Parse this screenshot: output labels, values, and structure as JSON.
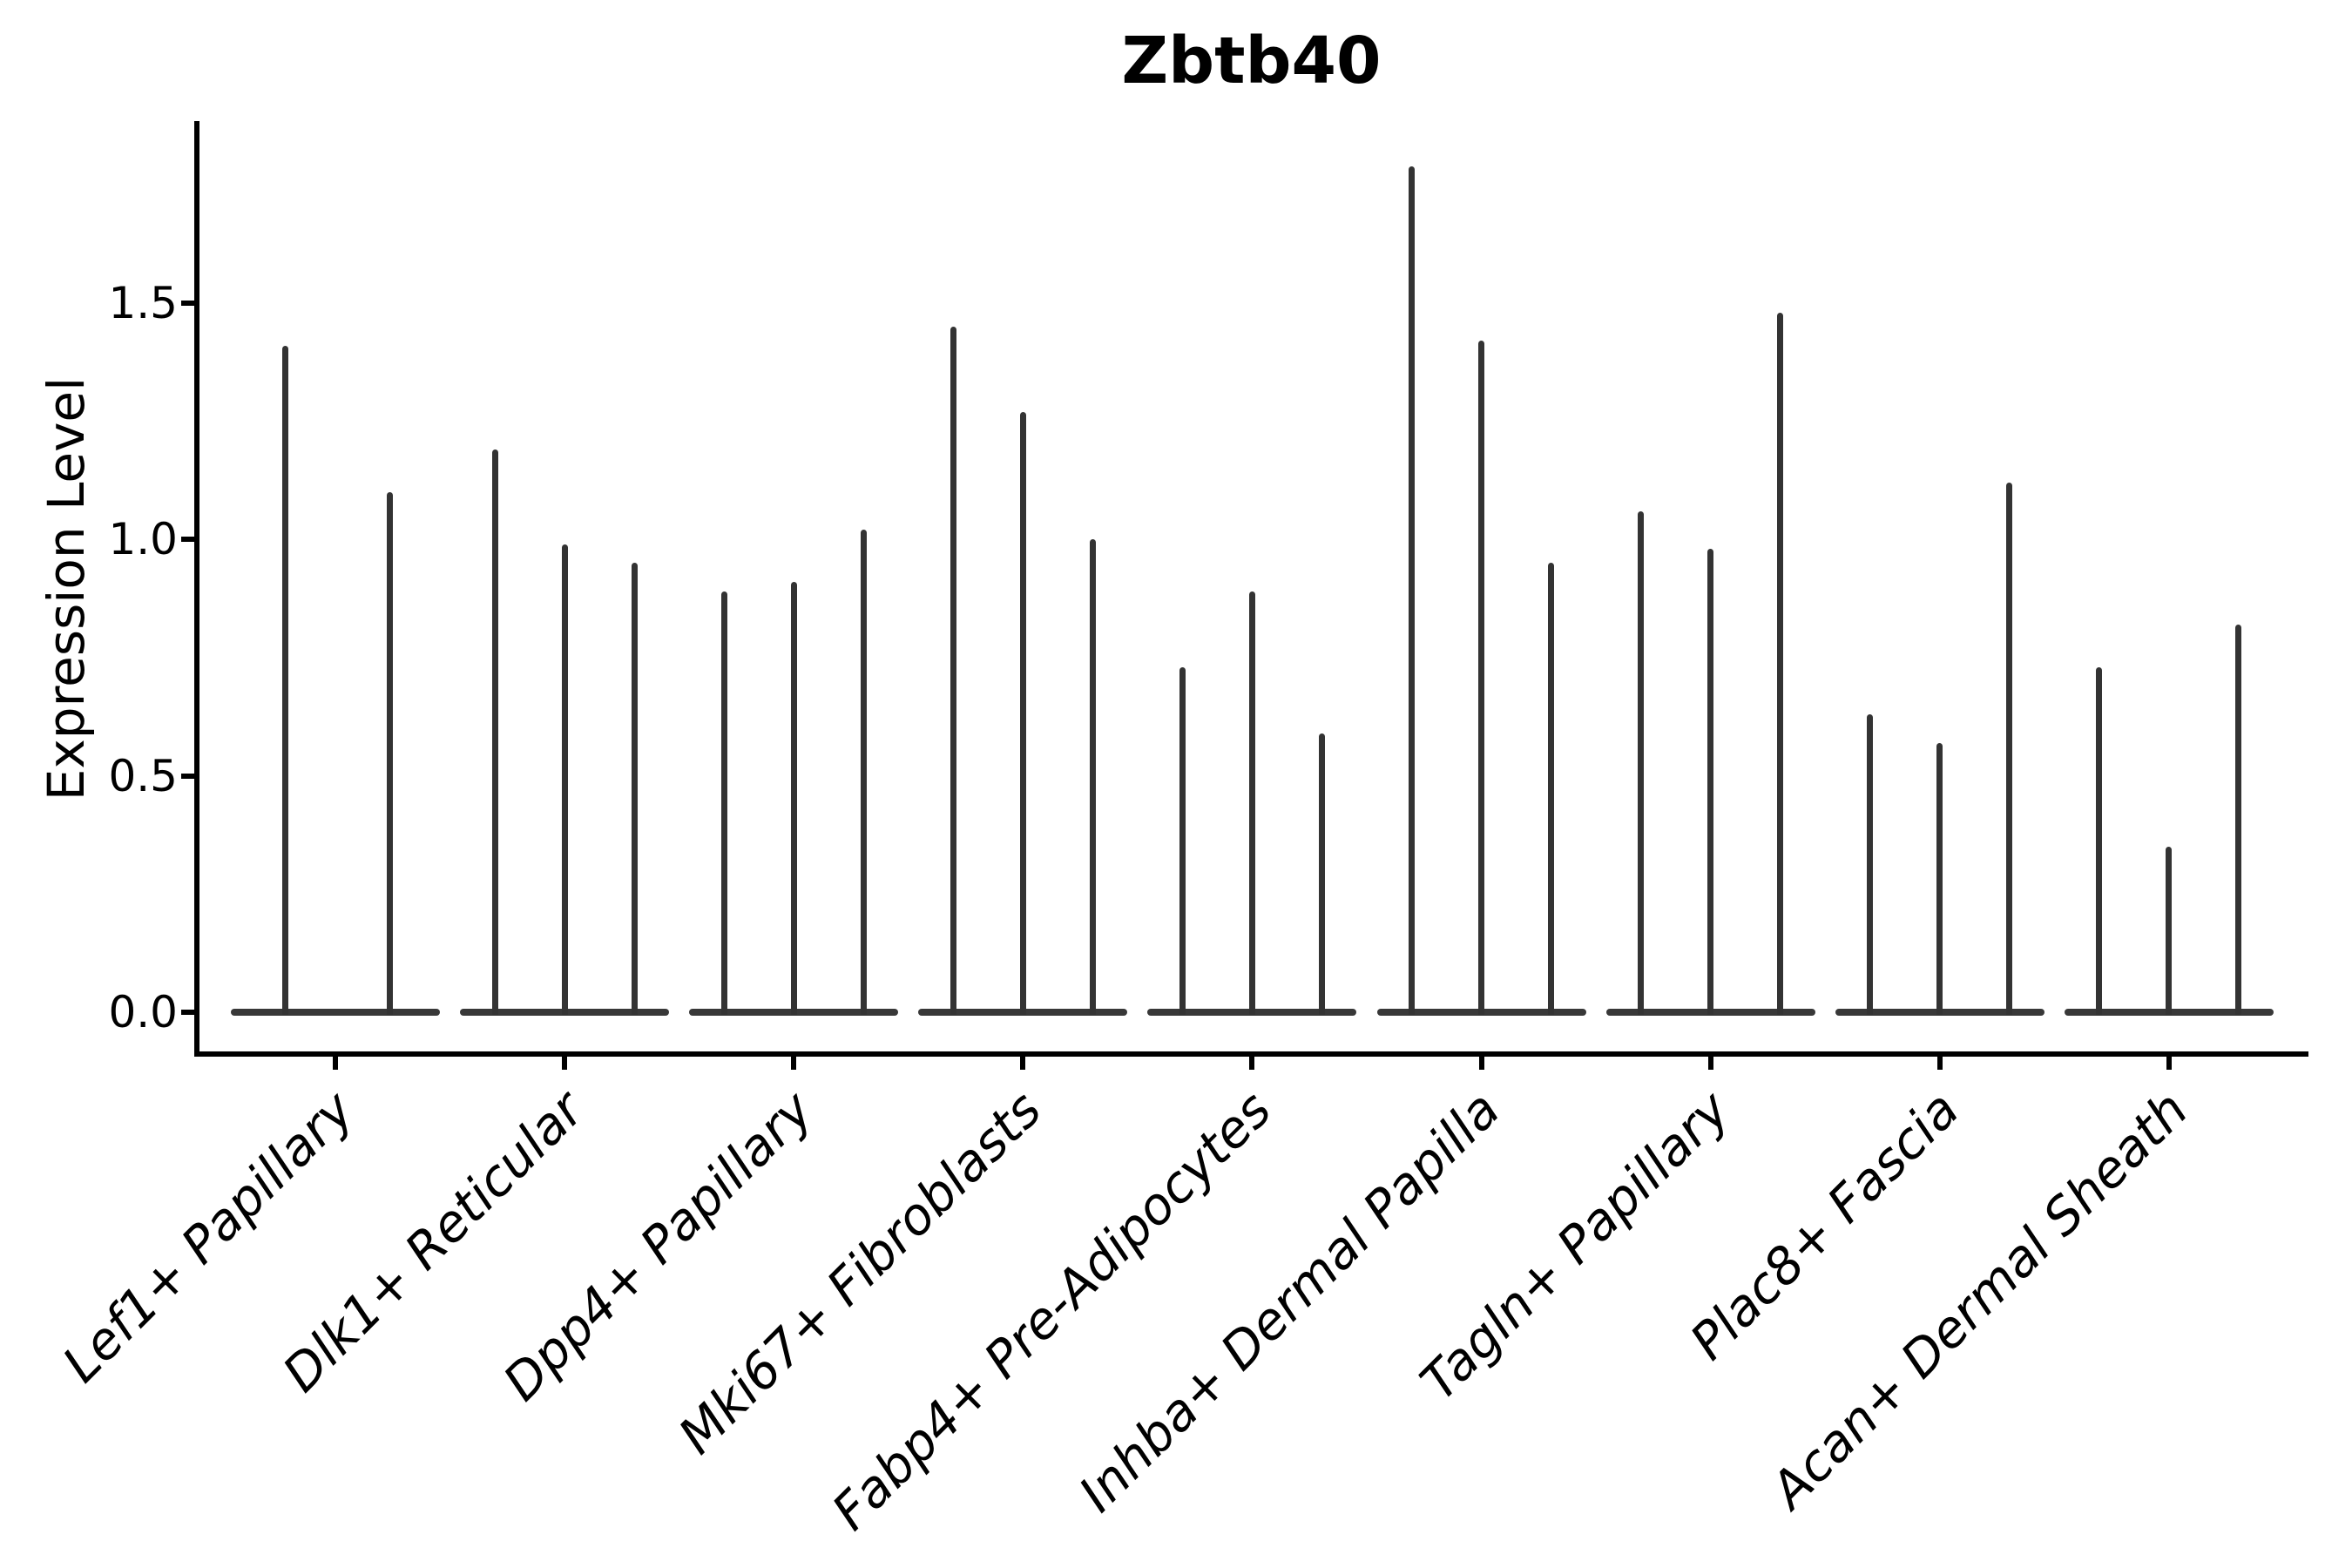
{
  "chart_data": {
    "type": "violin",
    "title": "Zbtb40",
    "ylabel": "Expression Level",
    "xlabel": "",
    "yticks": [
      0.0,
      0.5,
      1.0,
      1.5
    ],
    "ytick_labels": [
      "0.0",
      "0.5",
      "1.0",
      "1.5"
    ],
    "ylim": [
      0.0,
      1.89
    ],
    "grid": false,
    "legend": "none",
    "style_note": "thin spike-like violins, all near-zero density with single max spike per violin, dark gray on white, axis spines left+bottom only, x labels rotated 45deg italic",
    "categories": [
      "Lef1+ Papillary",
      "Dlk1+ Reticular",
      "Dpp4+ Papillary",
      "Mki67+ Fibroblasts",
      "Fabp4+ Pre-Adipocytes",
      "Inhba+ Dermal Papilla",
      "Tagln+ Papillary",
      "Plac8+ Fascia",
      "Acan+ Dermal Sheath"
    ],
    "groups": [
      {
        "category": "Lef1+ Papillary",
        "violins": [
          {
            "dx": -58,
            "max": 1.41
          },
          {
            "dx": 62,
            "max": 1.1
          }
        ]
      },
      {
        "category": "Dlk1+ Reticular",
        "violins": [
          {
            "dx": -80,
            "max": 1.19
          },
          {
            "dx": 0,
            "max": 0.99
          },
          {
            "dx": 80,
            "max": 0.95
          }
        ]
      },
      {
        "category": "Dpp4+ Papillary",
        "violins": [
          {
            "dx": -80,
            "max": 0.89
          },
          {
            "dx": 0,
            "max": 0.91
          },
          {
            "dx": 80,
            "max": 1.02
          }
        ]
      },
      {
        "category": "Mki67+ Fibroblasts",
        "violins": [
          {
            "dx": -80,
            "max": 1.45
          },
          {
            "dx": 0,
            "max": 1.27
          },
          {
            "dx": 80,
            "max": 1.0
          }
        ]
      },
      {
        "category": "Fabp4+ Pre-Adipocytes",
        "violins": [
          {
            "dx": -80,
            "max": 0.73
          },
          {
            "dx": 0,
            "max": 0.89
          },
          {
            "dx": 80,
            "max": 0.59
          }
        ]
      },
      {
        "category": "Inhba+ Dermal Papilla",
        "violins": [
          {
            "dx": -80,
            "max": 1.79
          },
          {
            "dx": 0,
            "max": 1.42
          },
          {
            "dx": 80,
            "max": 0.95
          }
        ]
      },
      {
        "category": "Tagln+ Papillary",
        "violins": [
          {
            "dx": -80,
            "max": 1.06
          },
          {
            "dx": 0,
            "max": 0.98
          },
          {
            "dx": 80,
            "max": 1.48
          }
        ]
      },
      {
        "category": "Plac8+ Fascia",
        "violins": [
          {
            "dx": -80,
            "max": 0.63
          },
          {
            "dx": 0,
            "max": 0.57
          },
          {
            "dx": 80,
            "max": 1.12
          }
        ]
      },
      {
        "category": "Acan+ Dermal Sheath",
        "violins": [
          {
            "dx": -80,
            "max": 0.73
          },
          {
            "dx": 0,
            "max": 0.35
          },
          {
            "dx": 80,
            "max": 0.82
          }
        ]
      }
    ],
    "colors": {
      "violin": "#333333",
      "spine": "#000000",
      "text": "#000000",
      "background": "#ffffff"
    }
  }
}
